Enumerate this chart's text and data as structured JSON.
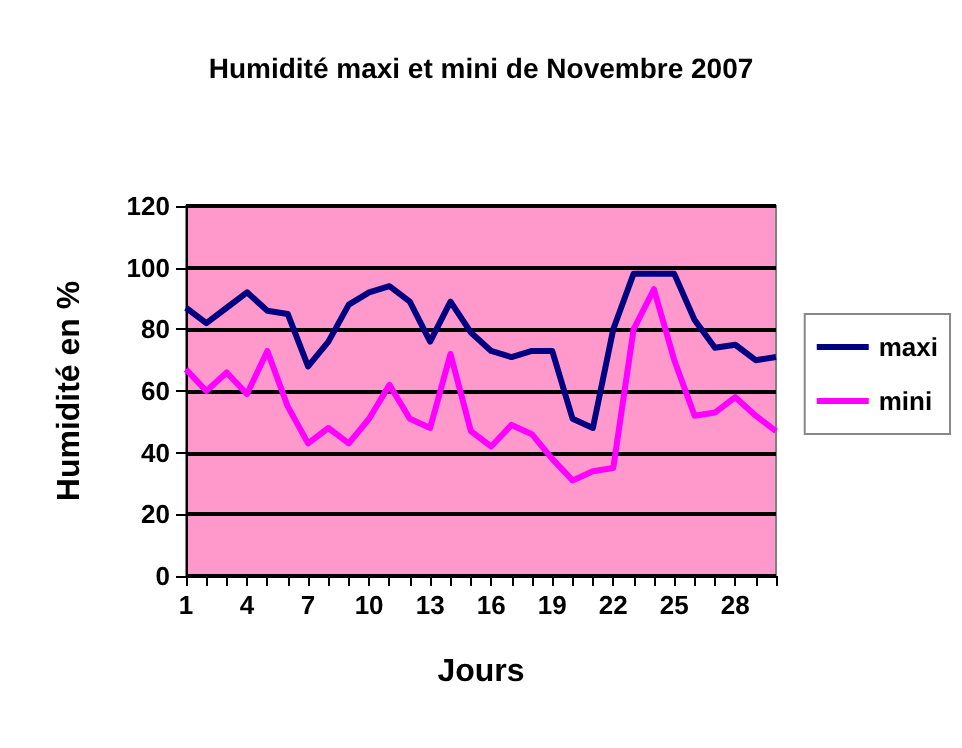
{
  "chart_data": {
    "type": "line",
    "title": "Humidité maxi et mini de Novembre 2007",
    "xlabel": "Jours",
    "ylabel": "Humidité en %",
    "categories": [
      "1",
      null,
      null,
      "4",
      null,
      null,
      "7",
      null,
      null,
      "10",
      null,
      null,
      "13",
      null,
      null,
      "16",
      null,
      null,
      "19",
      null,
      null,
      "22",
      null,
      null,
      "25",
      null,
      null,
      "28",
      null,
      null
    ],
    "series": [
      {
        "name": "maxi",
        "color": "#000080",
        "values": [
          87,
          82,
          87,
          92,
          86,
          85,
          68,
          76,
          88,
          92,
          94,
          89,
          76,
          89,
          79,
          73,
          71,
          73,
          73,
          51,
          48,
          80,
          98,
          98,
          98,
          83,
          74,
          75,
          70,
          71
        ]
      },
      {
        "name": "mini",
        "color": "#ff00ff",
        "values": [
          67,
          60,
          66,
          59,
          73,
          55,
          43,
          48,
          43,
          51,
          62,
          51,
          48,
          72,
          47,
          42,
          49,
          46,
          38,
          31,
          34,
          35,
          80,
          93,
          70,
          52,
          53,
          58,
          52,
          47
        ]
      }
    ],
    "ylim": [
      0,
      120
    ],
    "yticks": [
      0,
      20,
      40,
      60,
      80,
      100,
      120
    ],
    "grid": "y",
    "legend": "right",
    "marker": "none",
    "line_style": "solid"
  }
}
